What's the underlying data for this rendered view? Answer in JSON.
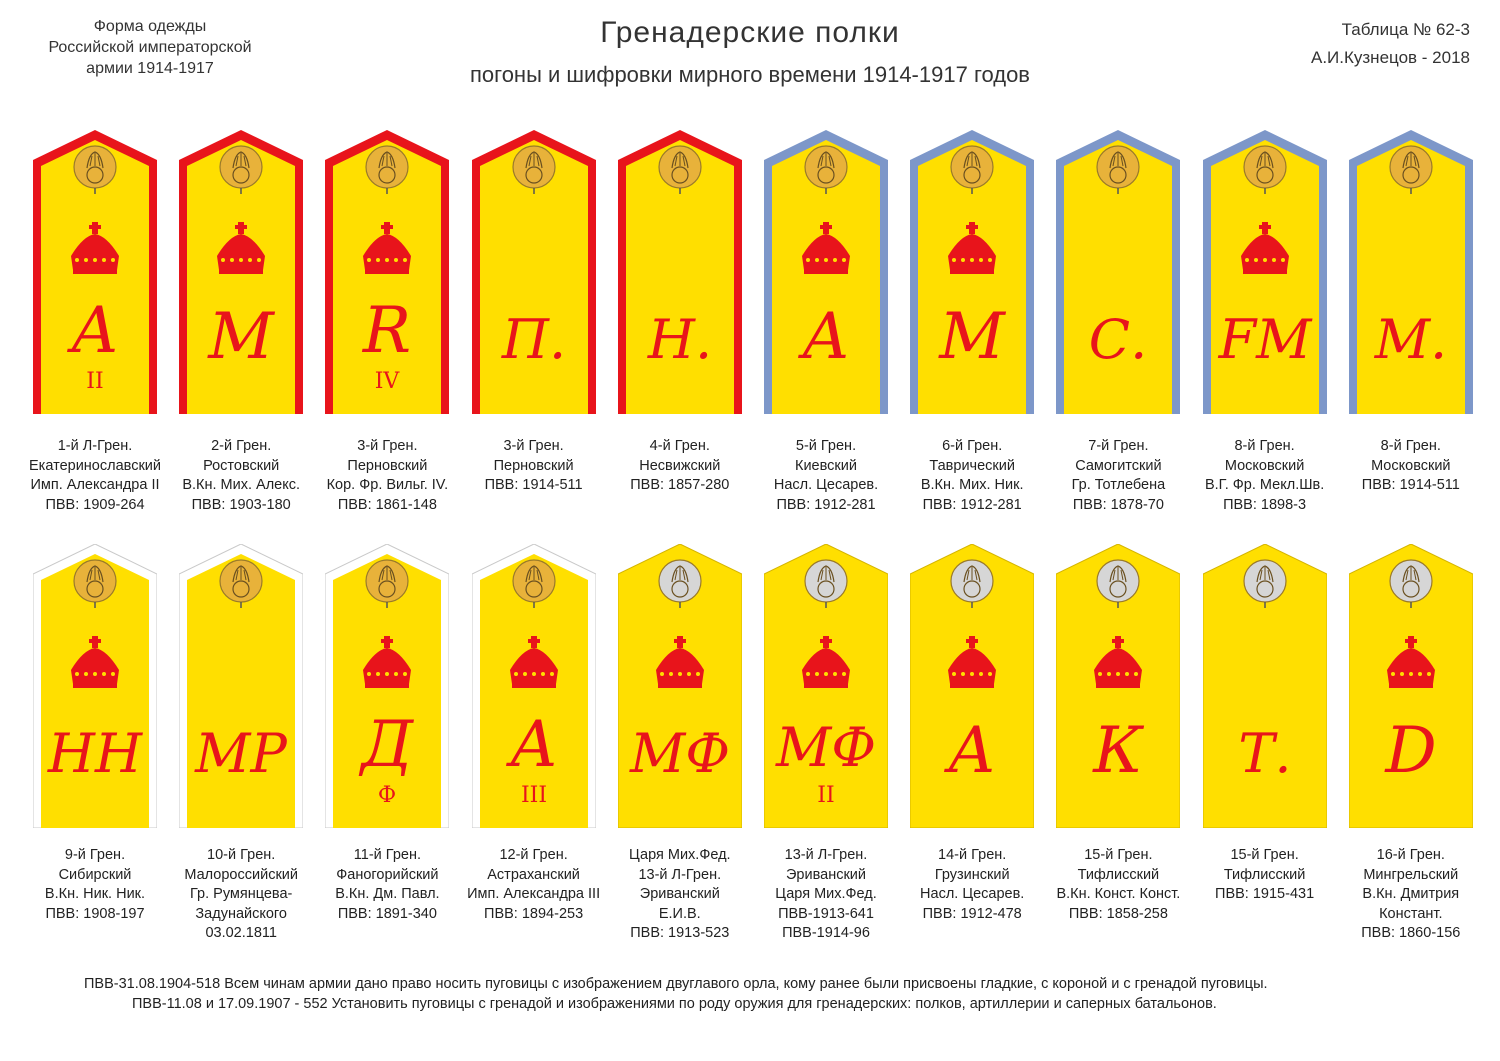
{
  "header": {
    "left_lines": [
      "Форма одежды",
      "Российской императорской",
      "армии  1914-1917"
    ],
    "title": "Гренадерские  полки",
    "subtitle": "погоны и шифровки мирного времени 1914-1917 годов",
    "right_lines": [
      "Таблица № 62-3",
      "А.И.Кузнецов - 2018"
    ]
  },
  "colors": {
    "field": "#ffdf00",
    "cipher": "#e8141b",
    "crown": "#e8141b",
    "edge_red": "#e8141b",
    "edge_blue": "#7d97c9",
    "edge_white": "#ffffff",
    "button_gold": "#e8b23a",
    "button_silver": "#d6d6d6"
  },
  "straps": [
    {
      "edge": "edge_red",
      "button": "button_gold",
      "crown": true,
      "cipher": "А",
      "sub": "II",
      "caption": [
        "1-й Л-Грен.",
        "Екатеринославский",
        "Имп. Александра II",
        "ПВВ: 1909-264"
      ]
    },
    {
      "edge": "edge_red",
      "button": "button_gold",
      "crown": true,
      "cipher": "М",
      "sub": "",
      "caption": [
        "2-й Грен.",
        "Ростовский",
        "В.Кн. Мих. Алекс.",
        "ПВВ: 1903-180"
      ]
    },
    {
      "edge": "edge_red",
      "button": "button_gold",
      "crown": true,
      "cipher": "R",
      "sub": "IV",
      "caption": [
        "3-й Грен.",
        "Перновский",
        "Кор. Фр. Вильг. IV.",
        "ПВВ: 1861-148"
      ]
    },
    {
      "edge": "edge_red",
      "button": "button_gold",
      "crown": false,
      "cipher": "П.",
      "sub": "",
      "caption": [
        "3-й Грен.",
        "Перновский",
        "ПВВ: 1914-511"
      ]
    },
    {
      "edge": "edge_red",
      "button": "button_gold",
      "crown": false,
      "cipher": "Н.",
      "sub": "",
      "caption": [
        "4-й Грен.",
        "Несвижский",
        "ПВВ: 1857-280"
      ]
    },
    {
      "edge": "edge_blue",
      "button": "button_gold",
      "crown": true,
      "cipher": "А",
      "sub": "",
      "caption": [
        "5-й Грен.",
        "Киевский",
        "Насл. Цесарев.",
        "ПВВ: 1912-281"
      ]
    },
    {
      "edge": "edge_blue",
      "button": "button_gold",
      "crown": true,
      "cipher": "М",
      "sub": "",
      "caption": [
        "6-й Грен.",
        "Таврический",
        "В.Кн. Мих. Ник.",
        "ПВВ: 1912-281"
      ]
    },
    {
      "edge": "edge_blue",
      "button": "button_gold",
      "crown": false,
      "cipher": "С.",
      "sub": "",
      "caption": [
        "7-й Грен.",
        "Самогитский",
        "Гр. Тотлебена",
        "ПВВ: 1878-70"
      ]
    },
    {
      "edge": "edge_blue",
      "button": "button_gold",
      "crown": true,
      "cipher": "FM",
      "sub": "",
      "caption": [
        "8-й Грен.",
        "Московский",
        "В.Г. Фр. Мекл.Шв.",
        "ПВВ: 1898-3"
      ]
    },
    {
      "edge": "edge_blue",
      "button": "button_gold",
      "crown": false,
      "cipher": "М.",
      "sub": "",
      "caption": [
        "8-й Грен.",
        "Московский",
        "ПВВ: 1914-511"
      ]
    },
    {
      "edge": "edge_white",
      "button": "button_gold",
      "crown": true,
      "cipher": "НН",
      "sub": "",
      "caption": [
        "9-й Грен.",
        "Сибирский",
        "В.Кн. Ник. Ник.",
        "ПВВ: 1908-197"
      ]
    },
    {
      "edge": "edge_white",
      "button": "button_gold",
      "crown": false,
      "cipher": "МР",
      "sub": "",
      "caption": [
        "10-й Грен.",
        "Малороссийский",
        "Гр. Румянцева-",
        "Задунайского",
        "03.02.1811"
      ]
    },
    {
      "edge": "edge_white",
      "button": "button_gold",
      "crown": true,
      "cipher": "Д",
      "sub": "Ф",
      "caption": [
        "11-й Грен.",
        "Фаногорийский",
        "В.Кн. Дм. Павл.",
        "ПВВ: 1891-340"
      ]
    },
    {
      "edge": "edge_white",
      "button": "button_gold",
      "crown": true,
      "cipher": "А",
      "sub": "III",
      "caption": [
        "12-й Грен.",
        "Астраханский",
        "Имп. Александра III",
        "ПВВ: 1894-253"
      ]
    },
    {
      "edge": "edge_field",
      "button": "button_silver",
      "crown": true,
      "cipher": "МФ",
      "sub": "",
      "caption": [
        "Царя Мих.Фед.",
        "13-й Л-Грен.",
        "Эриванский",
        "Е.И.В.",
        "ПВВ: 1913-523"
      ]
    },
    {
      "edge": "edge_field",
      "button": "button_silver",
      "crown": true,
      "cipher": "МФ",
      "sub": "II",
      "caption": [
        "13-й Л-Грен.",
        "Эриванский",
        "Царя Мих.Фед.",
        "ПВВ-1913-641",
        "ПВВ-1914-96"
      ]
    },
    {
      "edge": "edge_field",
      "button": "button_silver",
      "crown": true,
      "cipher": "А",
      "sub": "",
      "caption": [
        "14-й Грен.",
        "Грузинский",
        "Насл. Цесарев.",
        "ПВВ: 1912-478"
      ]
    },
    {
      "edge": "edge_field",
      "button": "button_silver",
      "crown": true,
      "cipher": "К",
      "sub": "",
      "caption": [
        "15-й Грен.",
        "Тифлисский",
        "В.Кн. Конст. Конст.",
        "ПВВ: 1858-258"
      ]
    },
    {
      "edge": "edge_field",
      "button": "button_silver",
      "crown": false,
      "cipher": "Т.",
      "sub": "",
      "caption": [
        "15-й Грен.",
        "Тифлисский",
        "ПВВ: 1915-431"
      ]
    },
    {
      "edge": "edge_field",
      "button": "button_silver",
      "crown": true,
      "cipher": "D",
      "sub": "",
      "caption": [
        "16-й Грен.",
        "Мингрельский",
        "В.Кн. Дмитрия",
        "Констант.",
        "ПВВ: 1860-156"
      ]
    }
  ],
  "footer": {
    "line1": "ПВВ-31.08.1904-518     Всем чинам армии дано право носить пуговицы с изображением двуглавого орла, кому ранее были присвоены гладкие, с короной и с гренадой пуговицы.",
    "line2": "ПВВ-11.08 и 17.09.1907 - 552  Установить пуговицы с гренадой и изображениями по роду оружия для гренадерских: полков, артиллерии и саперных батальонов."
  }
}
